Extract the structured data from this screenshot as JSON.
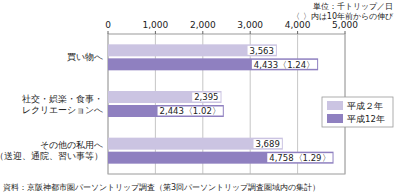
{
  "chart_data": {
    "type": "bar",
    "orientation": "horizontal",
    "xlabel": "単位：千トリップ／日",
    "annotations": [
      "〈 〉内は10年前からの伸び",
      "資料：京阪神都市圏パーソントリップ調査（第3回パーソントリップ調査圏域内の集計）"
    ],
    "categories": [
      "買い物へ",
      "社交・娯楽・食事・\nレクリエーションへ",
      "その他の私用へ\n（送迎、通院、習い事等）"
    ],
    "series": [
      {
        "name": "平成２年",
        "color": "#cbc4e2",
        "values": [
          3563,
          2395,
          3689
        ],
        "value_labels": [
          "3,563",
          "2,395",
          "3,689"
        ]
      },
      {
        "name": "平成12年",
        "color": "#8f80c0",
        "values": [
          4433,
          2443,
          4758
        ],
        "value_labels": [
          "4,433〈1.24〉",
          "2,443〈1.02〉",
          "4,758〈1.29〉"
        ]
      }
    ],
    "xlim": [
      0,
      5000
    ],
    "xticks": [
      0,
      {
        "value": 1000,
        "label": "1,000"
      },
      {
        "value": 2000,
        "label": "2,000"
      },
      {
        "value": 3000,
        "label": "3,000"
      },
      {
        "value": 4000,
        "label": "4,000"
      },
      {
        "value": 5000,
        "label": "5,000"
      }
    ],
    "grid": true,
    "legend": "right",
    "data_labels": true
  }
}
